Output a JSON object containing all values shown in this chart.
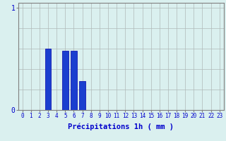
{
  "hours": [
    0,
    1,
    2,
    3,
    4,
    5,
    6,
    7,
    8,
    9,
    10,
    11,
    12,
    13,
    14,
    15,
    16,
    17,
    18,
    19,
    20,
    21,
    22,
    23
  ],
  "values": [
    0,
    0,
    0,
    0.6,
    0.0,
    0.58,
    0.58,
    0.28,
    0,
    0,
    0,
    0,
    0,
    0,
    0,
    0,
    0,
    0,
    0,
    0,
    0,
    0,
    0,
    0
  ],
  "bar_color": "#1a3fcf",
  "bar_edge_color": "#0000aa",
  "background_color": "#daf0ef",
  "grid_color": "#b0b8b8",
  "xlabel": "Précipitations 1h ( mm )",
  "xlabel_color": "#0000cc",
  "tick_color": "#0000cc",
  "axis_color": "#808080",
  "xlim": [
    -0.5,
    23.5
  ],
  "ylim": [
    0,
    1.05
  ],
  "ytick_vals": [
    0,
    1
  ],
  "ytick_labels": [
    "0",
    "1"
  ],
  "xtick_labels": [
    "0",
    "1",
    "2",
    "3",
    "4",
    "5",
    "6",
    "7",
    "8",
    "9",
    "10",
    "11",
    "12",
    "13",
    "14",
    "15",
    "16",
    "17",
    "18",
    "19",
    "20",
    "21",
    "22",
    "23"
  ],
  "bar_width": 0.7,
  "xlabel_fontsize": 7.5,
  "xtick_fontsize": 5.5,
  "ytick_fontsize": 7.0
}
